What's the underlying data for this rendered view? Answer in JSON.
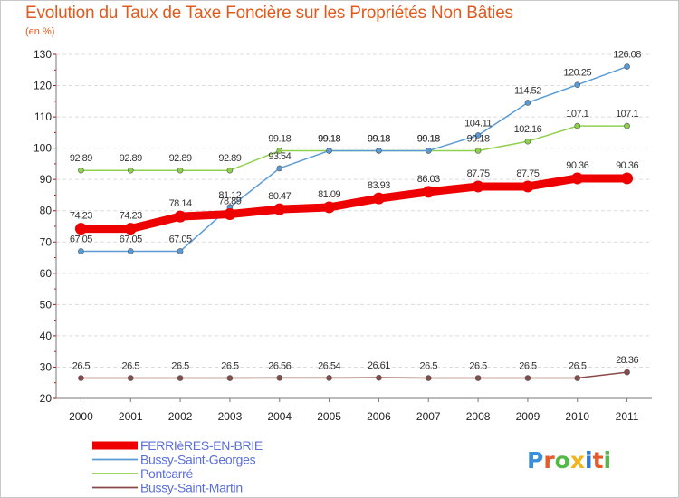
{
  "title": "Evolution du Taux de Taxe Foncière sur les Propriétés Non Bâties",
  "subtitle": "(en %)",
  "brand": "Proxiti",
  "chart_data": {
    "type": "line",
    "title": "Evolution du Taux de Taxe Foncière sur les Propriétés Non Bâties",
    "ylabel": "(en %)",
    "xlabel": "",
    "ylim": [
      20,
      130
    ],
    "yticks": [
      20,
      30,
      40,
      50,
      60,
      70,
      80,
      90,
      100,
      110,
      120,
      130
    ],
    "categories": [
      "2000",
      "2001",
      "2002",
      "2003",
      "2004",
      "2005",
      "2006",
      "2007",
      "2008",
      "2009",
      "2010",
      "2011"
    ],
    "grid": "horizontal dashed",
    "legend_position": "bottom-left",
    "series": [
      {
        "name": "FERRIèRES-EN-BRIE",
        "color": "#ee0000",
        "width": 9,
        "values": [
          74.23,
          74.23,
          78.14,
          78.89,
          80.47,
          81.09,
          83.93,
          86.03,
          87.75,
          87.75,
          90.36,
          90.36
        ],
        "labels": [
          "74.23",
          "74.23",
          "78.14",
          "78.89",
          "80.47",
          "81.09",
          "83.93",
          "86.03",
          "87.75",
          "87.75",
          "90.36",
          "90.36"
        ]
      },
      {
        "name": "Bussy-Saint-Georges",
        "color": "#5b9bd5",
        "width": 1.5,
        "values": [
          67.05,
          67.05,
          67.05,
          81.12,
          93.54,
          99.18,
          99.18,
          99.18,
          104.11,
          114.52,
          120.25,
          126.08
        ],
        "labels": [
          "67.05",
          "67.05",
          "67.05",
          "81.12",
          "93.54",
          "99.18",
          "99.18",
          "99.18",
          "104.11",
          "114.52",
          "120.25",
          "126.08"
        ]
      },
      {
        "name": "Pontcarré",
        "color": "#8fd14f",
        "width": 1.5,
        "values": [
          92.89,
          92.89,
          92.89,
          92.89,
          99.18,
          99.18,
          99.18,
          99.18,
          99.18,
          102.16,
          107.1,
          107.1
        ],
        "labels": [
          "92.89",
          "92.89",
          "92.89",
          "92.89",
          "99.18",
          "99.18",
          "99.18",
          "99.18",
          "99.18",
          "102.16",
          "107.1",
          "107.1"
        ]
      },
      {
        "name": "Bussy-Saint-Martin",
        "color": "#8b4a4a",
        "width": 1.5,
        "values": [
          26.5,
          26.5,
          26.5,
          26.5,
          26.56,
          26.54,
          26.61,
          26.5,
          26.5,
          26.5,
          26.5,
          28.36
        ],
        "labels": [
          "26.5",
          "26.5",
          "26.5",
          "26.5",
          "26.56",
          "26.54",
          "26.61",
          "26.5",
          "26.5",
          "26.5",
          "26.5",
          "28.36"
        ]
      }
    ]
  }
}
